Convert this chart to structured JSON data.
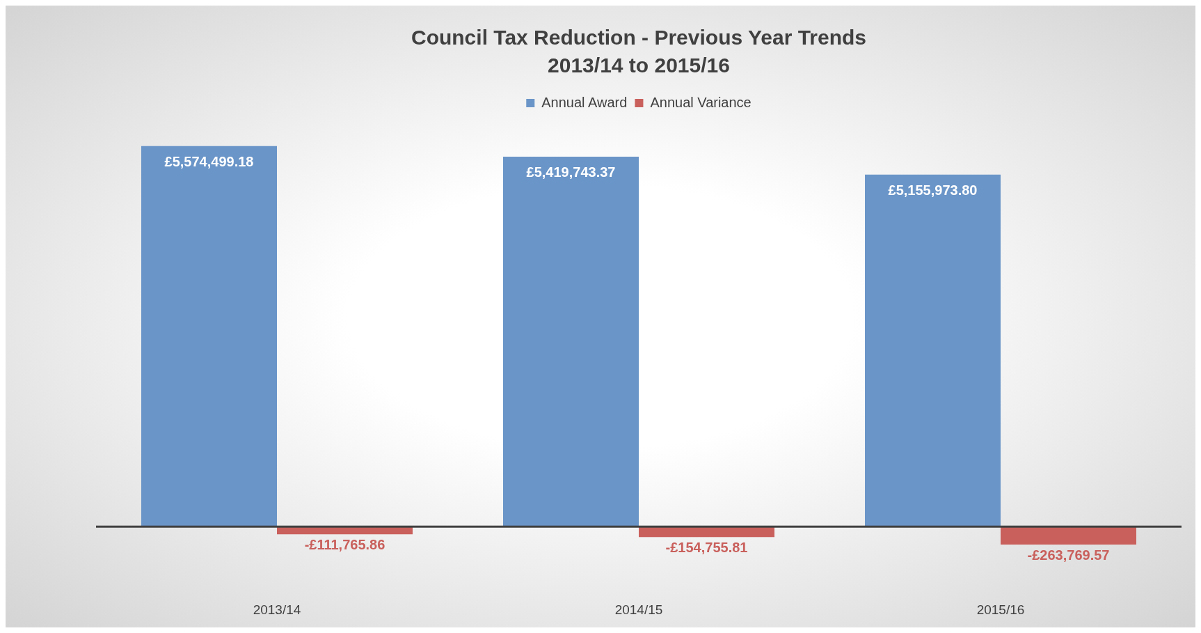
{
  "chart_data": {
    "type": "bar",
    "title": "Council Tax Reduction - Previous Year Trends",
    "subtitle": "2013/14 to 2015/16",
    "categories": [
      "2013/14",
      "2014/15",
      "2015/16"
    ],
    "series": [
      {
        "name": "Annual Award",
        "color": "#6a95c8",
        "values": [
          5574499.18,
          5419743.37,
          5155973.8
        ],
        "value_labels": [
          "£5,574,499.18",
          "£5,419,743.37",
          "£5,155,973.80"
        ]
      },
      {
        "name": "Annual Variance",
        "color": "#c9605c",
        "values": [
          -111765.86,
          -154755.81,
          -263769.57
        ],
        "value_labels": [
          "-£111,765.86",
          "-£154,755.81",
          "-£263,769.57"
        ]
      }
    ],
    "tick_labels": "x",
    "legend": "top"
  }
}
